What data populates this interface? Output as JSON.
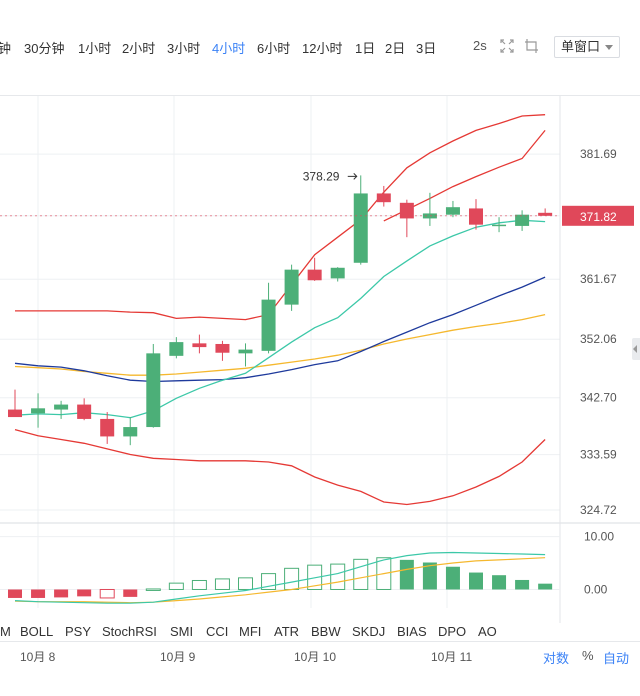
{
  "toolbar": {
    "timeframes": [
      {
        "label": "钟",
        "active": false
      },
      {
        "label": "30分钟",
        "active": false
      },
      {
        "label": "1小时",
        "active": false
      },
      {
        "label": "2小时",
        "active": false
      },
      {
        "label": "3小时",
        "active": false
      },
      {
        "label": "4小时",
        "active": true
      },
      {
        "label": "6小时",
        "active": false
      },
      {
        "label": "12小时",
        "active": false
      },
      {
        "label": "1日",
        "active": false
      },
      {
        "label": "2日",
        "active": false
      },
      {
        "label": "3日",
        "active": false
      }
    ],
    "refresh_label": "2s",
    "window_select": "单窗口"
  },
  "indicator_tabs": [
    "M",
    "BOLL",
    "PSY",
    "StochRSI",
    "SMI",
    "CCI",
    "MFI",
    "ATR",
    "BBW",
    "SKDJ",
    "BIAS",
    "DPO",
    "AO"
  ],
  "footer": {
    "log_label": "对数",
    "percent_label": "%",
    "auto_label": "自动"
  },
  "colors": {
    "up": "#4caf78",
    "down": "#e0485a",
    "boll_band": "#e53935",
    "ma_fast": "#3cc8a8",
    "ma_mid": "#1e3a9c",
    "ma_slow": "#f5b82e",
    "accent": "#3b82f6"
  },
  "chart_data": {
    "type": "candlestick",
    "title": "",
    "x_ticks": [
      "10月 8",
      "10月 9",
      "10月 10",
      "10月 11"
    ],
    "y_ticks": [
      381.69,
      371.82,
      361.67,
      352.06,
      342.7,
      333.59,
      324.72
    ],
    "ylim": [
      322.8,
      391
    ],
    "last_price": 371.82,
    "high_annotation": {
      "label": "378.29",
      "value": 378.29
    },
    "candles": [
      {
        "o": 340.8,
        "h": 344.0,
        "l": 339.6,
        "c": 339.6
      },
      {
        "o": 340.2,
        "h": 343.4,
        "l": 337.9,
        "c": 341.0
      },
      {
        "o": 340.8,
        "h": 342.2,
        "l": 339.3,
        "c": 341.6
      },
      {
        "o": 341.6,
        "h": 342.6,
        "l": 339.1,
        "c": 339.3
      },
      {
        "o": 339.3,
        "h": 340.4,
        "l": 335.3,
        "c": 336.5
      },
      {
        "o": 336.5,
        "h": 339.6,
        "l": 335.1,
        "c": 338.0
      },
      {
        "o": 338.0,
        "h": 351.3,
        "l": 337.9,
        "c": 349.8
      },
      {
        "o": 349.4,
        "h": 352.4,
        "l": 349.0,
        "c": 351.6
      },
      {
        "o": 351.4,
        "h": 352.8,
        "l": 349.8,
        "c": 350.8
      },
      {
        "o": 351.3,
        "h": 351.8,
        "l": 348.6,
        "c": 349.9
      },
      {
        "o": 349.8,
        "h": 351.4,
        "l": 347.7,
        "c": 350.4
      },
      {
        "o": 350.2,
        "h": 361.1,
        "l": 349.8,
        "c": 358.4
      },
      {
        "o": 357.6,
        "h": 364.0,
        "l": 356.6,
        "c": 363.2
      },
      {
        "o": 363.2,
        "h": 365.1,
        "l": 361.4,
        "c": 361.5
      },
      {
        "o": 361.8,
        "h": 363.6,
        "l": 361.3,
        "c": 363.5
      },
      {
        "o": 364.3,
        "h": 378.29,
        "l": 364.0,
        "c": 375.4
      },
      {
        "o": 375.4,
        "h": 376.6,
        "l": 373.3,
        "c": 374.0
      },
      {
        "o": 373.9,
        "h": 374.4,
        "l": 368.4,
        "c": 371.4
      },
      {
        "o": 371.4,
        "h": 375.5,
        "l": 370.2,
        "c": 372.2
      },
      {
        "o": 372.0,
        "h": 374.2,
        "l": 371.6,
        "c": 373.2
      },
      {
        "o": 373.0,
        "h": 374.5,
        "l": 369.6,
        "c": 370.4
      },
      {
        "o": 370.4,
        "h": 371.6,
        "l": 369.2,
        "c": 370.4
      },
      {
        "o": 370.2,
        "h": 372.7,
        "l": 369.4,
        "c": 372.0
      },
      {
        "o": 372.3,
        "h": 373.0,
        "l": 371.8,
        "c": 371.82
      }
    ],
    "series": [
      {
        "key": "boll_upper",
        "values": [
          null,
          null,
          null,
          null,
          null,
          null,
          null,
          null,
          null,
          null,
          null,
          null,
          null,
          null,
          null,
          null,
          371.0,
          372.8,
          374.6,
          376.5,
          378.1,
          379.6,
          381.0,
          385.5
        ]
      },
      {
        "key": "boll_mid_fast",
        "values": [
          339.9,
          340.1,
          340.0,
          340.3,
          340.0,
          339.5,
          340.6,
          342.6,
          344.2,
          345.5,
          346.6,
          349.1,
          351.6,
          353.9,
          355.5,
          358.6,
          362.1,
          364.6,
          367.0,
          368.6,
          370.0,
          370.7,
          371.1,
          370.9
        ]
      },
      {
        "key": "ma_mid",
        "values": [
          348.2,
          347.8,
          347.6,
          347.0,
          346.2,
          345.5,
          345.3,
          345.4,
          345.5,
          345.6,
          345.9,
          346.5,
          347.2,
          348.0,
          348.6,
          350.1,
          351.7,
          353.2,
          354.7,
          356.0,
          357.5,
          359.0,
          360.4,
          362.0
        ]
      },
      {
        "key": "ma_slow",
        "values": [
          347.7,
          347.5,
          347.3,
          346.9,
          346.6,
          346.3,
          346.3,
          346.5,
          346.8,
          347.1,
          347.4,
          347.9,
          348.4,
          348.9,
          349.5,
          350.3,
          351.3,
          352.1,
          352.8,
          353.5,
          354.1,
          354.6,
          355.2,
          356.0
        ]
      },
      {
        "key": "boll_band_top",
        "values": [
          356.6,
          356.6,
          356.6,
          356.6,
          356.6,
          356.4,
          356.3,
          355.4,
          355.6,
          355.4,
          355.2,
          356.0,
          360.8,
          365.6,
          368.4,
          371.2,
          375.6,
          379.5,
          381.9,
          383.8,
          385.5,
          386.6,
          387.8,
          388.0
        ]
      },
      {
        "key": "boll_band_bottom",
        "values": [
          337.6,
          336.6,
          336.0,
          335.4,
          334.5,
          333.6,
          333.0,
          332.8,
          332.6,
          332.6,
          332.6,
          332.4,
          331.8,
          330.0,
          328.7,
          327.7,
          326.0,
          325.6,
          326.1,
          327.0,
          328.4,
          330.1,
          332.4,
          336.0
        ]
      }
    ],
    "sub_chart": {
      "y_ticks": [
        10.0,
        0.0
      ],
      "ylim": [
        -3.5,
        12
      ],
      "macd": [
        -1.6,
        -1.6,
        -1.5,
        -1.3,
        -1.6,
        -1.4,
        0.1,
        1.2,
        1.7,
        2.0,
        2.2,
        3.0,
        4.0,
        4.6,
        4.8,
        5.7,
        6.0,
        5.6,
        5.1,
        4.3,
        3.2,
        2.7,
        1.8,
        1.1
      ],
      "line_fast": [
        -2.1,
        -2.3,
        -2.4,
        -2.5,
        -2.6,
        -2.6,
        -2.4,
        -1.8,
        -1.2,
        -0.7,
        -0.2,
        0.6,
        1.4,
        2.2,
        3.0,
        4.3,
        5.6,
        6.4,
        6.9,
        7.0,
        6.9,
        6.8,
        6.7,
        6.6
      ],
      "line_slow": [
        -2.2,
        -2.3,
        -2.3,
        -2.3,
        -2.4,
        -2.5,
        -2.4,
        -2.1,
        -1.8,
        -1.4,
        -1.0,
        -0.5,
        0.0,
        0.7,
        1.4,
        2.2,
        3.0,
        3.8,
        4.5,
        5.0,
        5.4,
        5.6,
        5.8,
        6.0
      ]
    }
  }
}
